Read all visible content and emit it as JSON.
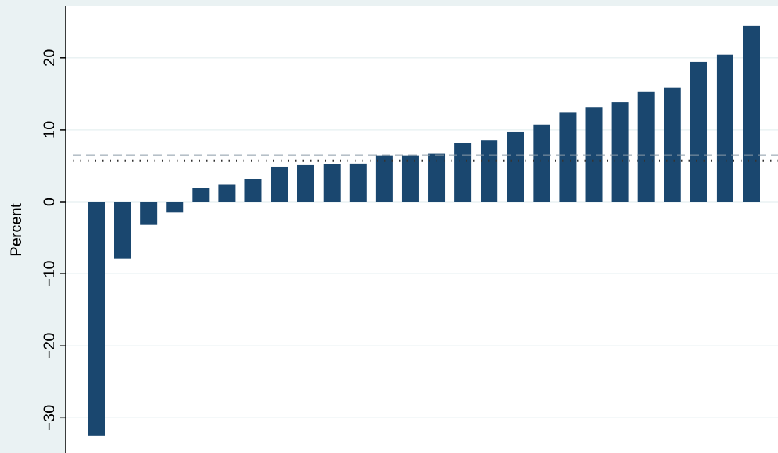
{
  "chart_data": {
    "type": "bar",
    "title": "",
    "xlabel": "",
    "ylabel": "Percent",
    "ylim": [
      -33.5,
      27
    ],
    "yticks": [
      -30,
      -20,
      -10,
      0,
      10,
      20
    ],
    "ytick_labels": [
      "−30",
      "−20",
      "−10",
      "0",
      "10",
      "20"
    ],
    "grid": true,
    "values": [
      -32.5,
      -7.9,
      -3.2,
      -1.5,
      1.9,
      2.4,
      3.2,
      4.9,
      5.1,
      5.2,
      5.3,
      6.4,
      6.4,
      6.7,
      8.2,
      8.5,
      9.7,
      10.7,
      12.4,
      13.1,
      13.8,
      15.3,
      15.8,
      19.4,
      20.4,
      24.4
    ],
    "reference_lines": [
      {
        "style": "dashed",
        "value": 6.5
      },
      {
        "style": "dotted",
        "value": 5.7
      }
    ],
    "colors": {
      "bar": "#1a476f",
      "plot_background": "#ffffff",
      "outer_background": "#eaf2f3",
      "grid": "#eaf2f3",
      "dashed_line": "#8a9aa6",
      "dotted_line": "#333333",
      "axis": "#000000"
    }
  }
}
